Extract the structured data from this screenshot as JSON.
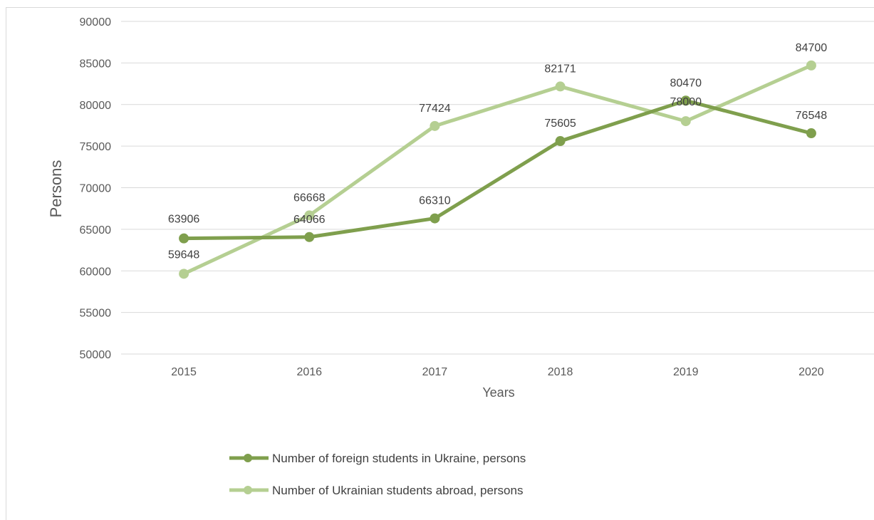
{
  "chart_data": {
    "type": "line",
    "categories": [
      "2015",
      "2016",
      "2017",
      "2018",
      "2019",
      "2020"
    ],
    "series": [
      {
        "name": "Number of foreign students in Ukraine, persons",
        "values": [
          63906,
          64066,
          66310,
          75605,
          80470,
          76548
        ],
        "color": "#7f9f4d"
      },
      {
        "name": "Number of Ukrainian students abroad, persons",
        "values": [
          59648,
          66668,
          77424,
          82171,
          78000,
          84700
        ],
        "color": "#b5cf92"
      }
    ],
    "xlabel": "Years",
    "ylabel": "Persons",
    "ylim": [
      50000,
      90000
    ],
    "ytick_step": 5000,
    "yticks": [
      "50000",
      "55000",
      "60000",
      "65000",
      "70000",
      "75000",
      "80000",
      "85000",
      "90000"
    ],
    "grid": true,
    "legend_position": "bottom"
  }
}
